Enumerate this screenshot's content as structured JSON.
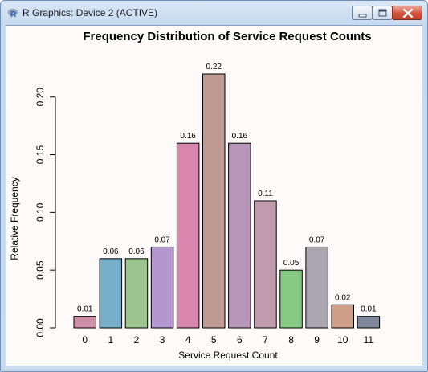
{
  "window": {
    "title": "R Graphics: Device 2 (ACTIVE)",
    "icon": "r-logo-icon",
    "buttons": [
      "minimize-icon",
      "maximize-icon",
      "close-icon"
    ],
    "titlebar_color": "#c6d9ef",
    "close_color": "#c94a32",
    "background": "#fdfaf9"
  },
  "chart_data": {
    "type": "bar",
    "title": "Frequency Distribution of Service Request Counts",
    "xlabel": "Service Request Count",
    "ylabel": "Relative Frequency",
    "categories": [
      "0",
      "1",
      "2",
      "3",
      "4",
      "5",
      "6",
      "7",
      "8",
      "9",
      "10",
      "11"
    ],
    "values": [
      0.01,
      0.06,
      0.06,
      0.07,
      0.16,
      0.22,
      0.16,
      0.11,
      0.05,
      0.07,
      0.02,
      0.01
    ],
    "data_labels": [
      "0.01",
      "0.06",
      "0.06",
      "0.07",
      "0.16",
      "0.22",
      "0.16",
      "0.11",
      "0.05",
      "0.07",
      "0.02",
      "0.01"
    ],
    "colors": [
      "#cc8ea4",
      "#76adc9",
      "#9bc48e",
      "#b597d0",
      "#d786ad",
      "#bf9a93",
      "#b796b9",
      "#c09bae",
      "#85c982",
      "#aba5b1",
      "#cf9e88",
      "#7d8799"
    ],
    "ylim": [
      0,
      0.22
    ],
    "yticks": [
      0.0,
      0.05,
      0.1,
      0.15,
      0.2
    ],
    "ytick_labels": [
      "0.00",
      "0.05",
      "0.10",
      "0.15",
      "0.20"
    ],
    "grid": false,
    "legend": "none"
  }
}
